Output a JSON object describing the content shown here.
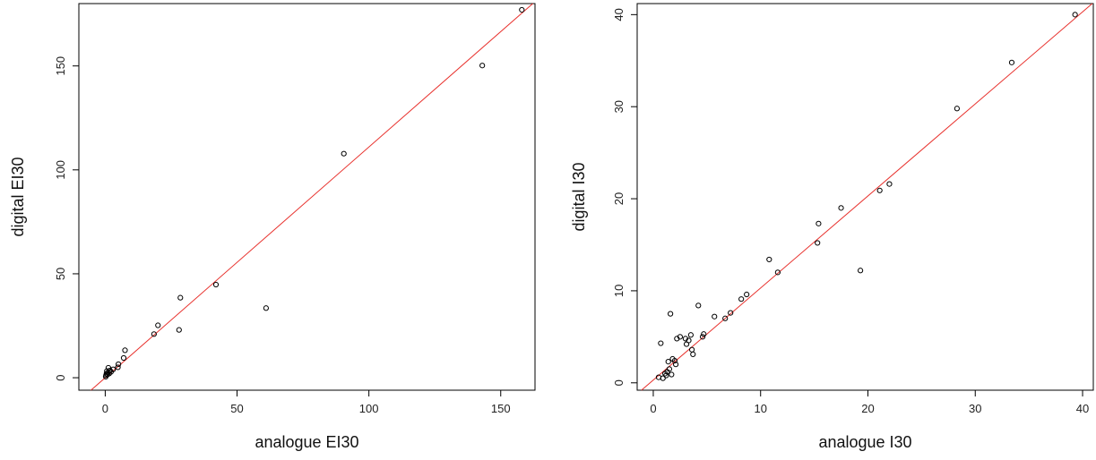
{
  "chart_data": [
    {
      "type": "scatter",
      "title": "",
      "xlabel": "analogue EI30",
      "ylabel": "digital EI30",
      "xlim": [
        -10,
        163
      ],
      "ylim": [
        -6,
        180
      ],
      "xticks": [
        0,
        50,
        100,
        150
      ],
      "yticks": [
        0,
        50,
        100,
        150
      ],
      "xtick_labels": [
        "0",
        "50",
        "100",
        "150"
      ],
      "ytick_labels": [
        "0",
        "50",
        "100",
        "150"
      ],
      "grid": false,
      "line_color": "#e8302c",
      "point_color": "#000000",
      "fit_line": {
        "intercept": 0,
        "slope": 1.11
      },
      "points": [
        {
          "x": 0.2,
          "y": 0.5
        },
        {
          "x": 0.3,
          "y": 1.2
        },
        {
          "x": 0.5,
          "y": 2.0
        },
        {
          "x": 0.6,
          "y": 3.2
        },
        {
          "x": 0.8,
          "y": 1.5
        },
        {
          "x": 1.0,
          "y": 2.5
        },
        {
          "x": 1.2,
          "y": 4.8
        },
        {
          "x": 1.5,
          "y": 2.0
        },
        {
          "x": 1.8,
          "y": 3.5
        },
        {
          "x": 2.2,
          "y": 2.8
        },
        {
          "x": 3.0,
          "y": 4.0
        },
        {
          "x": 4.8,
          "y": 5.0
        },
        {
          "x": 5.0,
          "y": 6.5
        },
        {
          "x": 7.0,
          "y": 9.5
        },
        {
          "x": 7.5,
          "y": 13.2
        },
        {
          "x": 18.5,
          "y": 21.0
        },
        {
          "x": 20.0,
          "y": 25.2
        },
        {
          "x": 28.0,
          "y": 23.0
        },
        {
          "x": 28.5,
          "y": 38.5
        },
        {
          "x": 42.0,
          "y": 44.8
        },
        {
          "x": 61.0,
          "y": 33.5
        },
        {
          "x": 90.5,
          "y": 107.8
        },
        {
          "x": 143.0,
          "y": 150.2
        },
        {
          "x": 158.0,
          "y": 177.0
        }
      ]
    },
    {
      "type": "scatter",
      "title": "",
      "xlabel": "analogue I30",
      "ylabel": "digital I30",
      "xlim": [
        -1.5,
        41
      ],
      "ylim": [
        -0.8,
        41.2
      ],
      "xticks": [
        0,
        10,
        20,
        30,
        40
      ],
      "yticks": [
        0,
        10,
        20,
        30,
        40
      ],
      "xtick_labels": [
        "0",
        "10",
        "20",
        "30",
        "40"
      ],
      "ytick_labels": [
        "0",
        "10",
        "20",
        "30",
        "40"
      ],
      "grid": false,
      "line_color": "#e8302c",
      "point_color": "#000000",
      "fit_line": {
        "intercept": 0.3,
        "slope": 1.0
      },
      "points": [
        {
          "x": 0.5,
          "y": 0.6
        },
        {
          "x": 0.7,
          "y": 4.3
        },
        {
          "x": 0.9,
          "y": 0.5
        },
        {
          "x": 1.1,
          "y": 1.0
        },
        {
          "x": 1.2,
          "y": 0.8
        },
        {
          "x": 1.3,
          "y": 1.2
        },
        {
          "x": 1.4,
          "y": 2.3
        },
        {
          "x": 1.5,
          "y": 1.5
        },
        {
          "x": 1.6,
          "y": 7.5
        },
        {
          "x": 1.7,
          "y": 0.9
        },
        {
          "x": 1.8,
          "y": 2.6
        },
        {
          "x": 2.0,
          "y": 2.4
        },
        {
          "x": 2.1,
          "y": 2.0
        },
        {
          "x": 2.2,
          "y": 4.8
        },
        {
          "x": 2.5,
          "y": 5.0
        },
        {
          "x": 3.0,
          "y": 4.8
        },
        {
          "x": 3.1,
          "y": 4.2
        },
        {
          "x": 3.3,
          "y": 4.6
        },
        {
          "x": 3.5,
          "y": 5.2
        },
        {
          "x": 3.6,
          "y": 3.6
        },
        {
          "x": 3.7,
          "y": 3.1
        },
        {
          "x": 4.2,
          "y": 8.4
        },
        {
          "x": 4.6,
          "y": 5.0
        },
        {
          "x": 4.7,
          "y": 5.3
        },
        {
          "x": 5.7,
          "y": 7.2
        },
        {
          "x": 6.7,
          "y": 7.0
        },
        {
          "x": 7.2,
          "y": 7.6
        },
        {
          "x": 8.2,
          "y": 9.1
        },
        {
          "x": 8.7,
          "y": 9.6
        },
        {
          "x": 10.8,
          "y": 13.4
        },
        {
          "x": 11.6,
          "y": 12.0
        },
        {
          "x": 15.3,
          "y": 15.2
        },
        {
          "x": 15.4,
          "y": 17.3
        },
        {
          "x": 17.5,
          "y": 19.0
        },
        {
          "x": 19.3,
          "y": 12.2
        },
        {
          "x": 21.1,
          "y": 20.9
        },
        {
          "x": 22.0,
          "y": 21.6
        },
        {
          "x": 28.3,
          "y": 29.8
        },
        {
          "x": 33.4,
          "y": 34.8
        },
        {
          "x": 39.3,
          "y": 40.0
        }
      ]
    }
  ]
}
